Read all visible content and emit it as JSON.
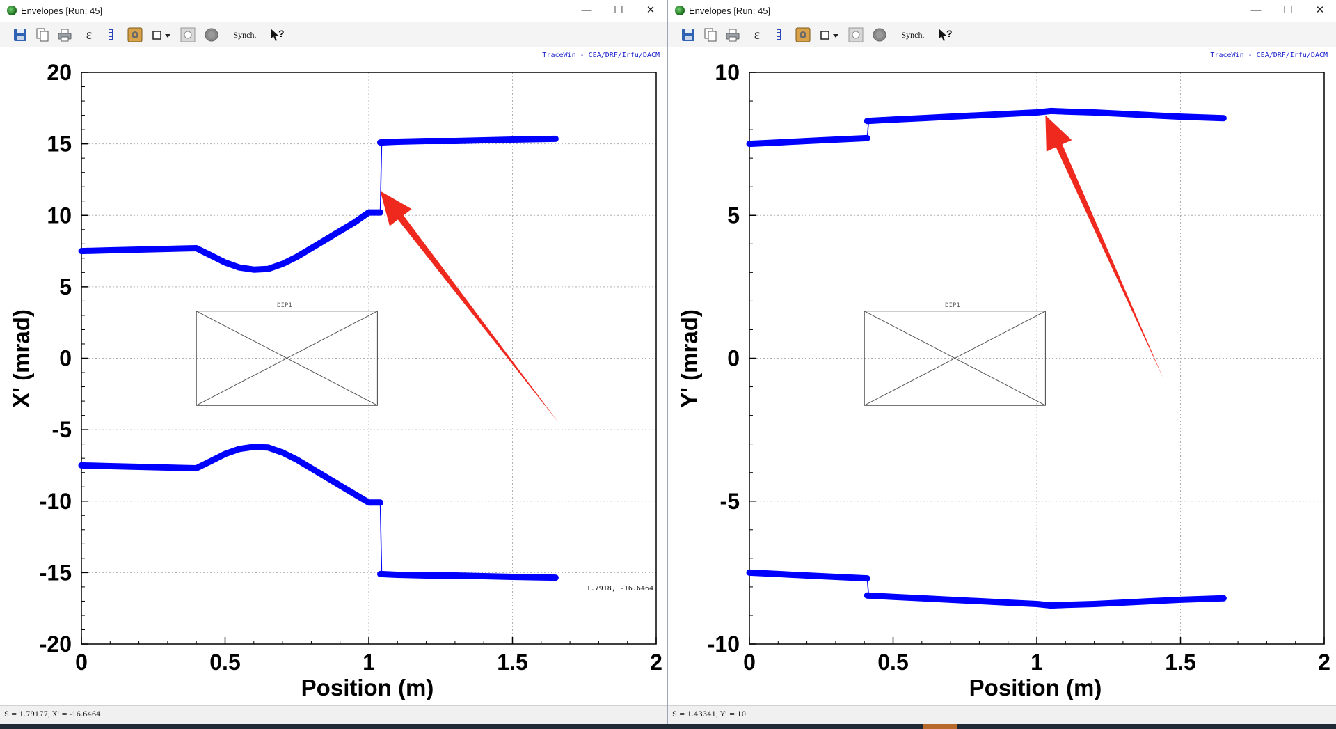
{
  "windows": [
    {
      "id": "winL",
      "title": "Envelopes [Run: 45]",
      "toolbar": {
        "synch_label": "Synch.",
        "epsilon_label": "ε",
        "help_label": "?"
      },
      "credit": "TraceWin - CEA/DRF/Irfu/DACM",
      "element_label": "DIP1",
      "cursor_readout": "1.7918, -16.6464",
      "status": "S = 1.79177, X' = -16.6464",
      "chart_data": {
        "type": "line",
        "xlabel": "Position (m)",
        "ylabel": "X' (mrad)",
        "xlim": [
          0,
          2
        ],
        "ylim": [
          -20,
          20
        ],
        "xticks": [
          0,
          0.5,
          1,
          1.5,
          2
        ],
        "xtick_labels": [
          "0",
          "0.5",
          "1",
          "1.5",
          "2"
        ],
        "yticks": [
          -20,
          -15,
          -10,
          -5,
          0,
          5,
          10,
          15,
          20
        ],
        "ytick_labels": [
          "-20",
          "-15",
          "-10",
          "-5",
          "0",
          "5",
          "10",
          "15",
          "20"
        ],
        "grid": true,
        "line_color": "#0000ff",
        "series": [
          {
            "x": [
              0,
              0.1,
              0.2,
              0.3,
              0.4,
              0.45,
              0.5,
              0.55,
              0.6,
              0.65,
              0.7,
              0.75,
              0.8,
              0.85,
              0.9,
              0.95,
              1.0,
              1.04,
              1.04,
              1.1,
              1.2,
              1.3,
              1.4,
              1.5,
              1.65
            ],
            "y": [
              7.5,
              7.55,
              7.6,
              7.65,
              7.7,
              7.2,
              6.7,
              6.35,
              6.2,
              6.25,
              6.6,
              7.1,
              7.7,
              8.3,
              8.9,
              9.5,
              10.2,
              10.2,
              15.1,
              15.15,
              15.2,
              15.2,
              15.25,
              15.3,
              15.35
            ]
          },
          {
            "x": [
              0,
              0.1,
              0.2,
              0.3,
              0.4,
              0.45,
              0.5,
              0.55,
              0.6,
              0.65,
              0.7,
              0.75,
              0.8,
              0.85,
              0.9,
              0.95,
              1.0,
              1.04,
              1.04,
              1.1,
              1.2,
              1.3,
              1.4,
              1.5,
              1.65
            ],
            "y": [
              -7.5,
              -7.55,
              -7.6,
              -7.65,
              -7.7,
              -7.2,
              -6.7,
              -6.35,
              -6.2,
              -6.25,
              -6.6,
              -7.1,
              -7.7,
              -8.3,
              -8.9,
              -9.5,
              -10.1,
              -10.1,
              -15.1,
              -15.15,
              -15.2,
              -15.2,
              -15.25,
              -15.3,
              -15.35
            ]
          }
        ],
        "element_box": {
          "x": [
            0.4,
            1.03
          ],
          "y": [
            -3.3,
            3.3
          ]
        },
        "annotation_arrow": {
          "tip": [
            1.04,
            11.7
          ],
          "tail": [
            1.66,
            -4.5
          ],
          "color": "#f0291e"
        }
      }
    },
    {
      "id": "winR",
      "title": "Envelopes [Run: 45]",
      "toolbar": {
        "synch_label": "Synch.",
        "epsilon_label": "ε",
        "help_label": "?"
      },
      "credit": "TraceWin - CEA/DRF/Irfu/DACM",
      "element_label": "DIP1",
      "cursor_readout": "",
      "status": "S = 1.43341, Y' = 10",
      "chart_data": {
        "type": "line",
        "xlabel": "Position (m)",
        "ylabel": "Y' (mrad)",
        "xlim": [
          0,
          2
        ],
        "ylim": [
          -10,
          10
        ],
        "xticks": [
          0,
          0.5,
          1,
          1.5,
          2
        ],
        "xtick_labels": [
          "0",
          "0.5",
          "1",
          "1.5",
          "2"
        ],
        "yticks": [
          -10,
          -5,
          0,
          5,
          10
        ],
        "ytick_labels": [
          "-10",
          "-5",
          "0",
          "5",
          "10"
        ],
        "grid": true,
        "line_color": "#0000ff",
        "series": [
          {
            "x": [
              0,
              0.1,
              0.2,
              0.3,
              0.41,
              0.41,
              0.5,
              0.6,
              0.7,
              0.8,
              0.9,
              1.0,
              1.05,
              1.1,
              1.2,
              1.3,
              1.4,
              1.5,
              1.65
            ],
            "y": [
              7.5,
              7.55,
              7.6,
              7.65,
              7.7,
              8.3,
              8.35,
              8.4,
              8.45,
              8.5,
              8.55,
              8.6,
              8.65,
              8.63,
              8.6,
              8.55,
              8.5,
              8.45,
              8.4
            ]
          },
          {
            "x": [
              0,
              0.1,
              0.2,
              0.3,
              0.41,
              0.41,
              0.5,
              0.6,
              0.7,
              0.8,
              0.9,
              1.0,
              1.05,
              1.1,
              1.2,
              1.3,
              1.4,
              1.5,
              1.65
            ],
            "y": [
              -7.5,
              -7.55,
              -7.6,
              -7.65,
              -7.7,
              -8.3,
              -8.35,
              -8.4,
              -8.45,
              -8.5,
              -8.55,
              -8.6,
              -8.65,
              -8.63,
              -8.6,
              -8.55,
              -8.5,
              -8.45,
              -8.4
            ]
          }
        ],
        "element_box": {
          "x": [
            0.4,
            1.03
          ],
          "y": [
            -1.65,
            1.65
          ]
        },
        "annotation_arrow": {
          "tip": [
            1.03,
            8.5
          ],
          "tail": [
            1.44,
            -0.7
          ],
          "color": "#f0291e"
        }
      }
    }
  ]
}
